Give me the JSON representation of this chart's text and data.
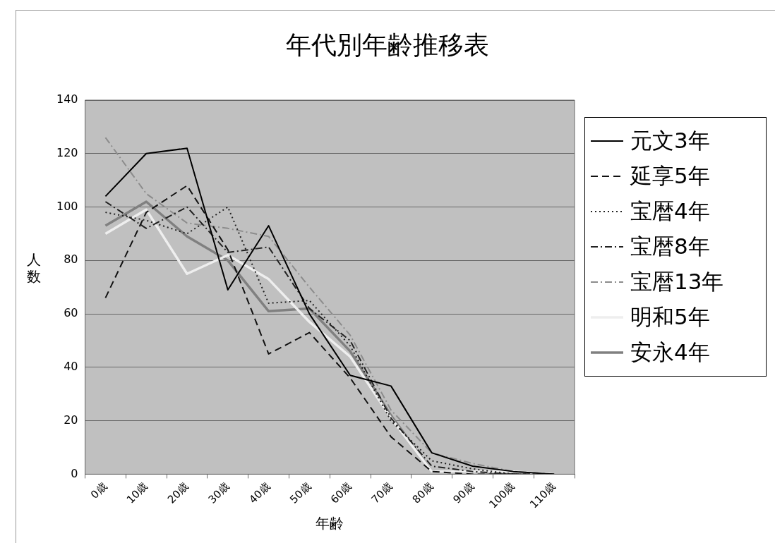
{
  "chart_data": {
    "type": "line",
    "title": "年代別年齢推移表",
    "xlabel": "年齢",
    "ylabel": "人数",
    "categories": [
      "0歳",
      "10歳",
      "20歳",
      "30歳",
      "40歳",
      "50歳",
      "60歳",
      "70歳",
      "80歳",
      "90歳",
      "100歳",
      "110歳"
    ],
    "series": [
      {
        "name": "元文3年",
        "color": "#000000",
        "line_style": "solid",
        "values": [
          104,
          120,
          122,
          69,
          93,
          60,
          37,
          33,
          8,
          3,
          1,
          0
        ]
      },
      {
        "name": "延享5年",
        "color": "#111111",
        "line_style": "dashed",
        "values": [
          66,
          98,
          108,
          84,
          45,
          53,
          36,
          14,
          1,
          0,
          0,
          0
        ]
      },
      {
        "name": "宝暦4年",
        "color": "#222222",
        "line_style": "dotted",
        "values": [
          98,
          95,
          90,
          100,
          64,
          65,
          48,
          20,
          5,
          2,
          0,
          0
        ]
      },
      {
        "name": "宝暦8年",
        "color": "#222222",
        "line_style": "dashdot",
        "values": [
          102,
          92,
          100,
          83,
          85,
          62,
          50,
          21,
          3,
          1,
          0,
          0
        ]
      },
      {
        "name": "宝暦13年",
        "color": "#8c8c8c",
        "line_style": "dashdot",
        "values": [
          126,
          105,
          94,
          92,
          89,
          70,
          52,
          24,
          8,
          4,
          1,
          0
        ]
      },
      {
        "name": "明和5年",
        "color": "#eeeeee",
        "line_style": "solid",
        "values": [
          90,
          99,
          75,
          82,
          73,
          57,
          44,
          21,
          1,
          1,
          1,
          0
        ]
      },
      {
        "name": "安永4年",
        "color": "#808080",
        "line_style": "solid",
        "values": [
          93,
          102,
          89,
          80,
          61,
          62,
          46,
          22,
          1,
          1,
          0,
          0
        ]
      }
    ],
    "ylim": [
      0,
      140
    ],
    "yticks": [
      0,
      20,
      40,
      60,
      80,
      100,
      120,
      140
    ],
    "grid": "y",
    "legend": "right",
    "marker": "none"
  }
}
